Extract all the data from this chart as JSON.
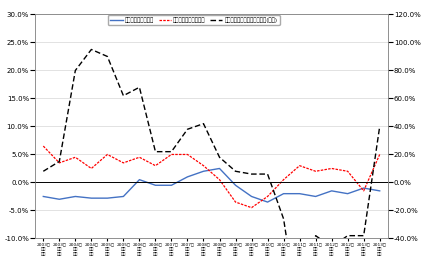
{
  "legend_labels": [
    "正規の職員・従業員",
    "非正規の職員・従業員",
    "労働者派遣事業所の派遣社員(右軸)"
  ],
  "seiki": [
    -0.025,
    -0.03,
    -0.025,
    -0.028,
    -0.028,
    -0.025,
    0.005,
    -0.005,
    -0.005,
    0.01,
    0.02,
    0.025,
    -0.005,
    -0.025,
    -0.035,
    -0.02,
    -0.02,
    -0.025,
    -0.015,
    -0.02,
    -0.01,
    -0.015
  ],
  "hiseiki": [
    0.065,
    0.035,
    0.045,
    0.025,
    0.05,
    0.035,
    0.045,
    0.03,
    0.05,
    0.05,
    0.03,
    0.005,
    -0.035,
    -0.045,
    -0.025,
    0.005,
    0.03,
    0.02,
    0.025,
    0.02,
    -0.015,
    0.05
  ],
  "haken": [
    0.08,
    0.15,
    0.8,
    0.95,
    0.9,
    0.62,
    0.68,
    0.22,
    0.22,
    0.38,
    0.42,
    0.18,
    0.08,
    0.06,
    0.06,
    -0.26,
    -1.0,
    -0.38,
    -0.46,
    -0.38,
    -0.38,
    0.4
  ],
  "seiki_color": "#4472C4",
  "hiseiki_color": "#FF0000",
  "haken_color": "#000000",
  "ylim_left": [
    -0.1,
    0.3
  ],
  "ylim_right": [
    -0.4,
    1.2
  ],
  "yticks_left": [
    -0.1,
    -0.05,
    0.0,
    0.05,
    0.1,
    0.15,
    0.2,
    0.25,
    0.3
  ],
  "yticks_right": [
    -0.4,
    -0.2,
    0.0,
    0.2,
    0.4,
    0.6,
    0.8,
    1.0,
    1.2
  ]
}
